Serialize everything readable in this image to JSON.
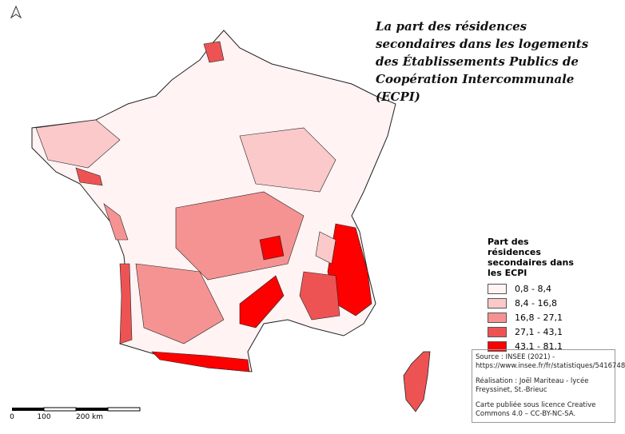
{
  "title": "La part des résidences secondaires dans les logements des Établissements Publics de Coopération Intercommunale (ECPI)",
  "legend": {
    "title": "Part des résidences secondaires dans les ECPI",
    "items": [
      {
        "label": "0,8 - 8,4",
        "color": "#fff3f3"
      },
      {
        "label": "8,4 - 16,8",
        "color": "#fbc9c9"
      },
      {
        "label": "16,8 - 27,1",
        "color": "#f59393"
      },
      {
        "label": "27,1 - 43,1",
        "color": "#ee5353"
      },
      {
        "label": "43,1 - 81,1",
        "color": "#ff0000"
      }
    ]
  },
  "source": [
    "Source : INSEE (2021) - https://www.insee.fr/fr/statistiques/5416748",
    "Réalisation : Joël Mariteau - lycée Freyssinet, St.-Brieuc",
    "Carte publiée sous licence Creative Commons 4.0 – CC-BY-NC-SA."
  ],
  "scale_bar": {
    "labels": [
      "0",
      "100",
      "200 km"
    ]
  }
}
